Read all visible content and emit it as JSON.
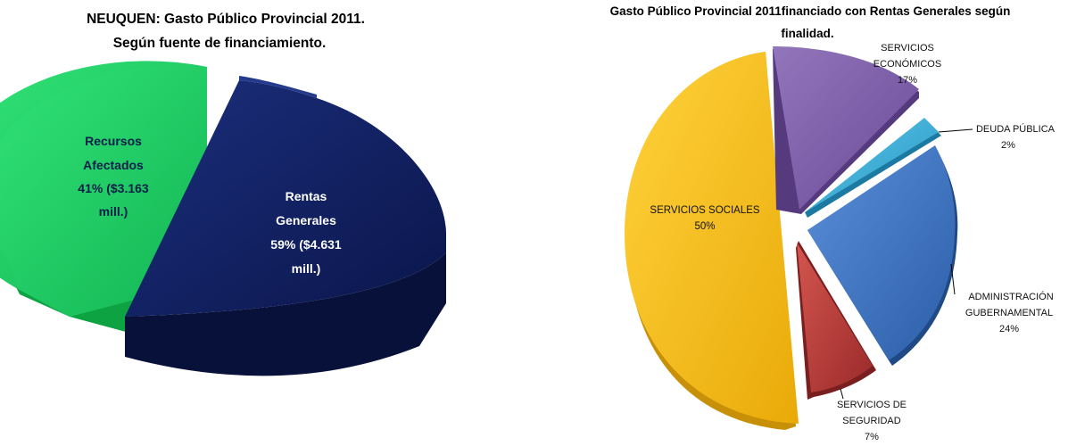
{
  "chart_data": [
    {
      "type": "pie",
      "title_lines": [
        "NEUQUEN: Gasto Público Provincial 2011.",
        "Según  fuente de financiamiento."
      ],
      "series": [
        {
          "label_lines": [
            "Recursos",
            "Afectados",
            "41%  ($3.163",
            "mill.)"
          ],
          "value": 41,
          "color": "#1fce63",
          "label_color": "#0b1f4a"
        },
        {
          "label_lines": [
            "Rentas",
            "Generales",
            "59%  ($4.631",
            "mill.)"
          ],
          "value": 59,
          "color": "#0e1e5e",
          "label_color": "#ffffff"
        }
      ]
    },
    {
      "type": "pie",
      "title_lines": [
        "Gasto Público Provincial 2011financiado con Rentas Generales según",
        "finalidad."
      ],
      "series": [
        {
          "label_lines": [
            "SERVICIOS",
            "ECONÓMICOS",
            "17%"
          ],
          "value": 17,
          "color": "#7b5aa6"
        },
        {
          "label_lines": [
            "DEUDA PÚBLICA",
            "2%"
          ],
          "value": 2,
          "color": "#35a9d4"
        },
        {
          "label_lines": [
            "ADMINISTRACIÓN",
            "GUBERNAMENTAL",
            "24%"
          ],
          "value": 24,
          "color": "#3b6fc0"
        },
        {
          "label_lines": [
            "SERVICIOS DE",
            "SEGURIDAD",
            "7%"
          ],
          "value": 7,
          "color": "#b83a3a"
        },
        {
          "label_lines": [
            "SERVICIOS SOCIALES",
            "50%"
          ],
          "value": 50,
          "color": "#f5bf17"
        }
      ]
    }
  ]
}
